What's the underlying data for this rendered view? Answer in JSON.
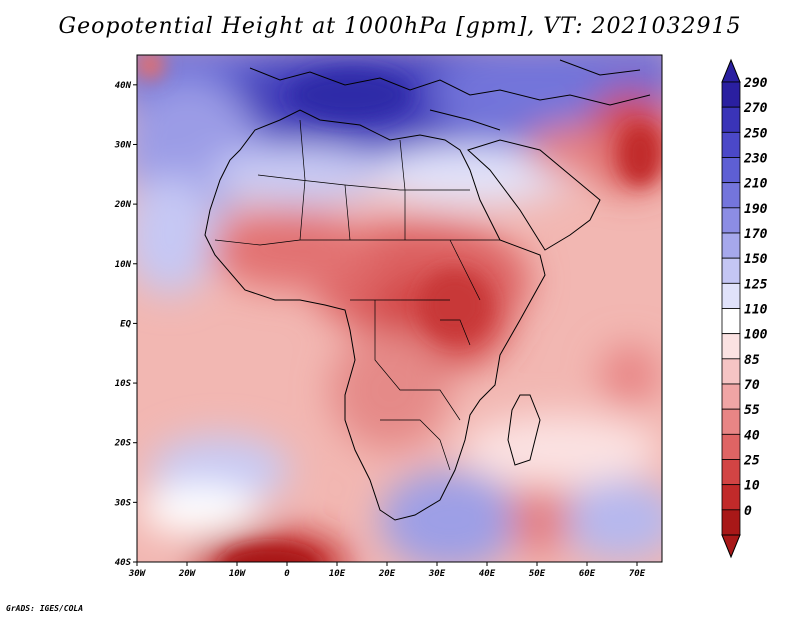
{
  "title": "Geopotential Height at 1000hPa [gpm], VT: 2021032915",
  "footer": "GrADS: IGES/COLA",
  "map": {
    "region": "Africa",
    "variable": "Geopotential Height",
    "level": "1000hPa",
    "units": "gpm",
    "lon_range": [
      -30,
      75
    ],
    "lat_range": [
      -40,
      45
    ],
    "lon_ticks": [
      "30W",
      "20W",
      "10W",
      "0",
      "10E",
      "20E",
      "30E",
      "40E",
      "50E",
      "60E",
      "70E"
    ],
    "lat_ticks": [
      "40N",
      "30N",
      "20N",
      "10N",
      "EQ",
      "10S",
      "20S",
      "30S",
      "40S"
    ]
  },
  "colorbar": {
    "levels": [
      "290",
      "270",
      "250",
      "230",
      "210",
      "190",
      "170",
      "150",
      "125",
      "110",
      "100",
      "85",
      "70",
      "55",
      "40",
      "25",
      "10",
      "0"
    ],
    "colors": [
      "#2a1fa0",
      "#3a34b8",
      "#4b48c8",
      "#5e5fd4",
      "#7475dc",
      "#8c8de4",
      "#a6a8ec",
      "#c4c6f4",
      "#e0e2fa",
      "#ffffff",
      "#fbe2e2",
      "#f6c4c4",
      "#f0a5a5",
      "#e88585",
      "#df6464",
      "#d24444",
      "#c12a2a",
      "#a81818"
    ]
  },
  "colors": {
    "high": "#3a34b8",
    "low": "#c12a2a",
    "neutral": "#ffffff"
  }
}
